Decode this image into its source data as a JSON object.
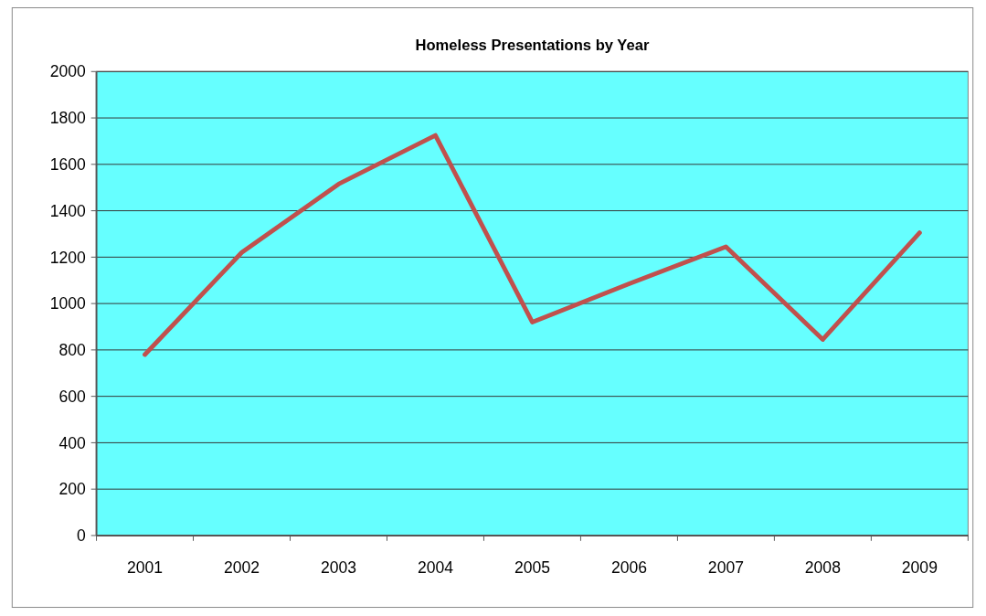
{
  "chart_data": {
    "type": "line",
    "title": "Homeless Presentations by Year",
    "categories": [
      "2001",
      "2002",
      "2003",
      "2004",
      "2005",
      "2006",
      "2007",
      "2008",
      "2009"
    ],
    "series": [
      {
        "color": "#c0504d",
        "values": [
          780,
          1220,
          1515,
          1725,
          920,
          1085,
          1245,
          845,
          1305
        ]
      }
    ],
    "ylim": [
      0,
      2000
    ],
    "yticks": [
      0,
      200,
      400,
      600,
      800,
      1000,
      1200,
      1400,
      1600,
      1800,
      2000
    ],
    "grid": "y",
    "marker": "none",
    "line_style": "solid"
  }
}
